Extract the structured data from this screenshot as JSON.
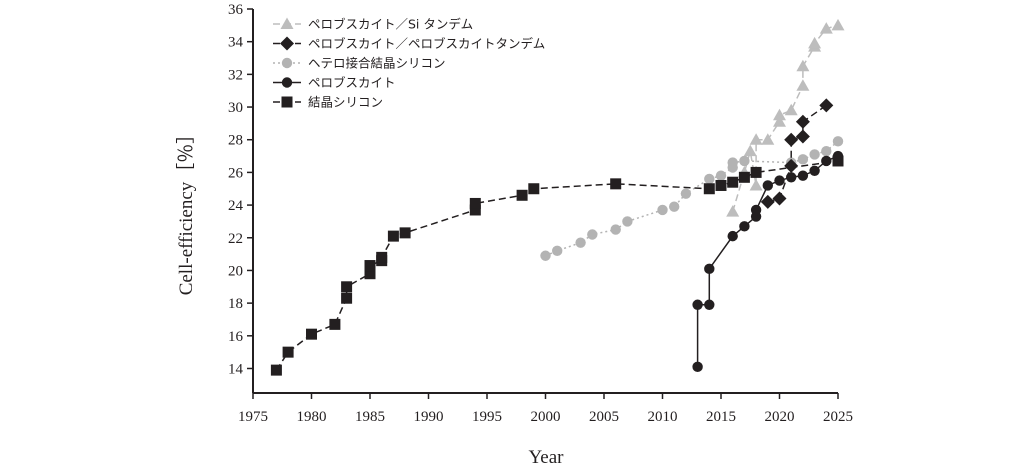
{
  "colors": {
    "axis": "#231f20",
    "dark": "#231f20",
    "gray_triangle": "#bdbdbd",
    "gray_circle": "#b3b3b3"
  },
  "chart_data": {
    "type": "line",
    "xlabel": "Year",
    "ylabel": "Cell-efficiency［％］",
    "xlim": [
      1975,
      2025
    ],
    "ylim": [
      12.5,
      36
    ],
    "xticks": [
      "1975",
      "1980",
      "1985",
      "1990",
      "1995",
      "2000",
      "2005",
      "2010",
      "2015",
      "2020",
      "2025"
    ],
    "yticks": [
      "14",
      "16",
      "18",
      "20",
      "22",
      "24",
      "26",
      "28",
      "30",
      "32",
      "34",
      "36"
    ],
    "grid": false,
    "legend_position": "top-left",
    "series": [
      {
        "name": "ペロブスカイト／Si タンデム",
        "marker": "triangle",
        "line": "dashed",
        "color": "gray_triangle",
        "points": [
          [
            2016,
            23.6
          ],
          [
            2017,
            26.0
          ],
          [
            2017.5,
            27.3
          ],
          [
            2018,
            25.2
          ],
          [
            2018,
            28.0
          ],
          [
            2019,
            28.0
          ],
          [
            2020,
            29.1
          ],
          [
            2020,
            29.5
          ],
          [
            2021,
            29.8
          ],
          [
            2022,
            31.3
          ],
          [
            2022,
            32.5
          ],
          [
            2023,
            33.7
          ],
          [
            2023,
            33.9
          ],
          [
            2024,
            34.8
          ],
          [
            2025,
            35.0
          ]
        ]
      },
      {
        "name": "ペロブスカイト／ペロブスカイトタンデム",
        "marker": "diamond",
        "line": "dashed",
        "color": "dark",
        "points": [
          [
            2019,
            24.2
          ],
          [
            2020,
            24.4
          ],
          [
            2021,
            26.4
          ],
          [
            2021,
            28.0
          ],
          [
            2022,
            28.2
          ],
          [
            2022,
            29.1
          ],
          [
            2024,
            30.1
          ]
        ]
      },
      {
        "name": "ヘテロ接合結晶シリコン",
        "marker": "circle",
        "line": "dotted",
        "color": "gray_circle",
        "points": [
          [
            2000,
            20.9
          ],
          [
            2001,
            21.2
          ],
          [
            2003,
            21.7
          ],
          [
            2004,
            22.2
          ],
          [
            2006,
            22.5
          ],
          [
            2007,
            23.0
          ],
          [
            2010,
            23.7
          ],
          [
            2011,
            23.9
          ],
          [
            2012,
            24.7
          ],
          [
            2014,
            25.6
          ],
          [
            2015,
            25.8
          ],
          [
            2016,
            26.3
          ],
          [
            2016,
            26.6
          ],
          [
            2017,
            26.7
          ],
          [
            2021,
            26.6
          ],
          [
            2022,
            26.8
          ],
          [
            2023,
            27.1
          ],
          [
            2024,
            27.3
          ],
          [
            2025,
            27.9
          ]
        ]
      },
      {
        "name": "ペロブスカイト",
        "marker": "circle",
        "line": "solid",
        "color": "dark",
        "points": [
          [
            2013,
            14.1
          ],
          [
            2013,
            17.9
          ],
          [
            2014,
            17.9
          ],
          [
            2014,
            20.1
          ],
          [
            2016,
            22.1
          ],
          [
            2017,
            22.7
          ],
          [
            2018,
            23.3
          ],
          [
            2018,
            23.7
          ],
          [
            2019,
            25.2
          ],
          [
            2020,
            25.5
          ],
          [
            2021,
            25.7
          ],
          [
            2022,
            25.8
          ],
          [
            2023,
            26.1
          ],
          [
            2024,
            26.7
          ],
          [
            2025,
            27.0
          ]
        ]
      },
      {
        "name": "結晶シリコン",
        "marker": "square",
        "line": "dashed",
        "color": "dark",
        "points": [
          [
            1977,
            13.9
          ],
          [
            1978,
            15.0
          ],
          [
            1980,
            16.1
          ],
          [
            1982,
            16.7
          ],
          [
            1983,
            18.3
          ],
          [
            1983,
            19.0
          ],
          [
            1985,
            19.8
          ],
          [
            1985,
            20.3
          ],
          [
            1986,
            20.6
          ],
          [
            1986,
            20.8
          ],
          [
            1987,
            22.1
          ],
          [
            1988,
            22.3
          ],
          [
            1994,
            23.7
          ],
          [
            1994,
            24.1
          ],
          [
            1998,
            24.6
          ],
          [
            1999,
            25.0
          ],
          [
            2006,
            25.3
          ],
          [
            2014,
            25.0
          ],
          [
            2015,
            25.2
          ],
          [
            2016,
            25.4
          ],
          [
            2017,
            25.7
          ],
          [
            2018,
            26.0
          ],
          [
            2025,
            26.7
          ]
        ]
      }
    ]
  }
}
